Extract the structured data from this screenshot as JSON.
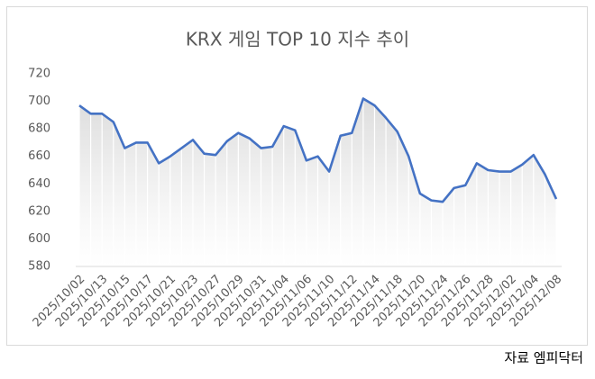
{
  "chart_data": {
    "type": "line",
    "title": "KRX 게임 TOP 10 지수 추이",
    "source": "자료 엠피닥터",
    "categories": [
      "2025/10/02",
      null,
      "2025/10/13",
      null,
      "2025/10/15",
      null,
      "2025/10/17",
      null,
      "2025/10/21",
      null,
      "2025/10/23",
      null,
      "2025/10/27",
      null,
      "2025/10/29",
      null,
      "2025/10/31",
      null,
      "2025/11/04",
      null,
      "2025/11/06",
      null,
      "2025/11/10",
      null,
      "2025/11/12",
      null,
      "2025/11/14",
      null,
      "2025/11/18",
      null,
      "2025/11/20",
      null,
      "2025/11/24",
      null,
      "2025/11/26",
      null,
      "2025/11/28",
      null,
      "2025/12/02",
      null,
      "2025/12/04",
      null,
      "2025/12/08"
    ],
    "values": [
      697,
      691,
      691,
      685,
      666,
      670,
      670,
      655,
      660,
      666,
      672,
      662,
      661,
      671,
      677,
      673,
      666,
      667,
      682,
      679,
      657,
      660,
      649,
      675,
      677,
      702,
      697,
      688,
      678,
      660,
      633,
      628,
      627,
      637,
      639,
      655,
      650,
      649,
      649,
      654,
      661,
      647,
      629
    ],
    "color": "#4472c4",
    "ylim": [
      580,
      720
    ],
    "yticks": [
      580,
      600,
      620,
      640,
      660,
      680,
      700,
      720
    ]
  }
}
